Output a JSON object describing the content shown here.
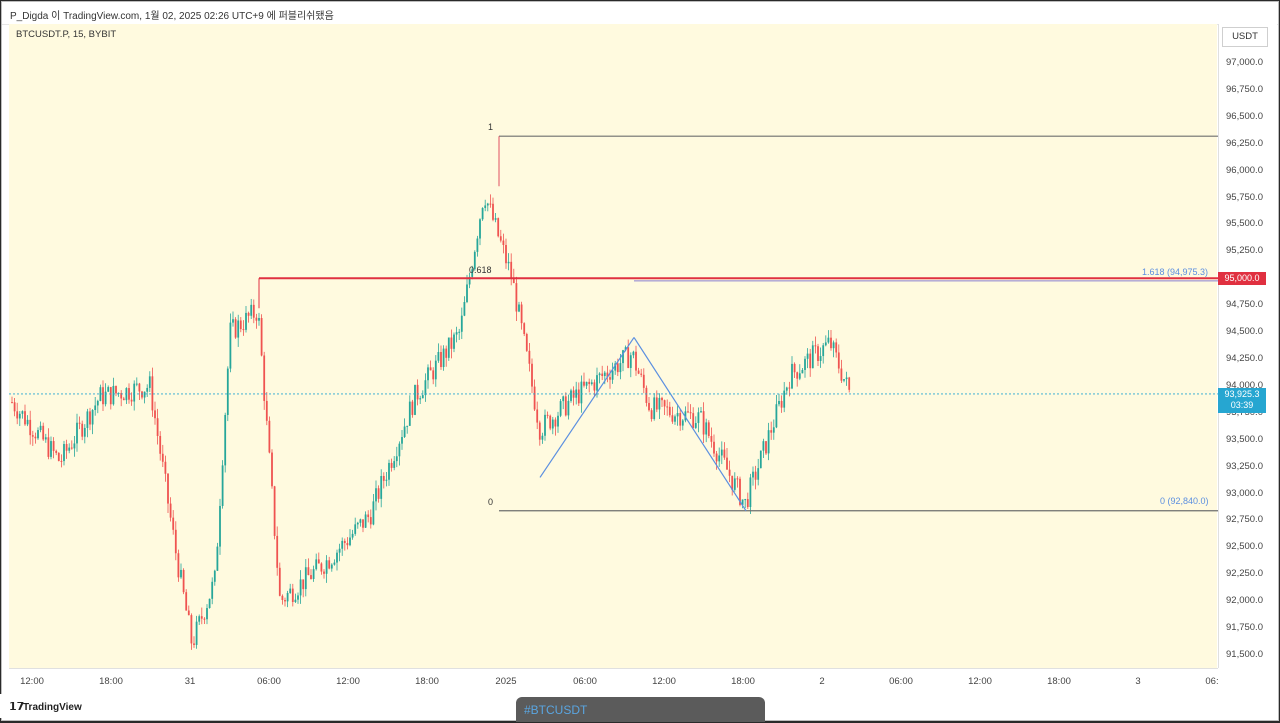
{
  "header": {
    "caption": "P_Digda 이 TradingView.com, 1월 02, 2025 02:26 UTC+9 에 퍼블리쉬됐음"
  },
  "chart_header": {
    "symbol": "BTCUSDT.P, 15, BYBIT"
  },
  "price_axis": {
    "unit": "USDT",
    "ticks": [
      "97,000.0",
      "96,750.0",
      "96,500.0",
      "96,250.0",
      "96,000.0",
      "95,750.0",
      "95,500.0",
      "95,250.0",
      "95,000.0",
      "94,750.0",
      "94,500.0",
      "94,250.0",
      "94,000.0",
      "93,750.0",
      "93,500.0",
      "93,250.0",
      "93,000.0",
      "92,750.0",
      "92,500.0",
      "92,250.0",
      "92,000.0",
      "91,750.0",
      "91,500.0"
    ]
  },
  "time_axis": {
    "ticks": [
      "12:00",
      "18:00",
      "31",
      "06:00",
      "12:00",
      "18:00",
      "2025",
      "06:00",
      "12:00",
      "18:00",
      "2",
      "06:00",
      "12:00",
      "18:00",
      "3",
      "06:"
    ]
  },
  "annotations": {
    "fib_1": "1",
    "fib_0618": "0.618",
    "fib_0": "0",
    "ext_1618": "1.618 (94,975.3)",
    "ext_0": "0 (92,840.0)"
  },
  "price_tags": {
    "resistance": "95,000.0",
    "current_price": "93,925.3",
    "countdown": "03:39"
  },
  "colors": {
    "background": "#fffadf",
    "bull": "#26a69a",
    "bear": "#ef5350",
    "resistance": "#e03040",
    "current": "#26a6d1",
    "pattern": "#5b8fe0"
  },
  "footer": {
    "logo_text": "TradingView",
    "hashtag": "#BTCUSDT"
  },
  "chart_data": {
    "type": "candlestick",
    "symbol": "BTCUSDT.P",
    "interval": "15",
    "exchange": "BYBIT",
    "ylim": [
      91400,
      97200
    ],
    "approx_close_path": [
      {
        "t": "12-31 10:00",
        "p": 93850
      },
      {
        "t": "12-31 14:00",
        "p": 93300
      },
      {
        "t": "12-31 18:00",
        "p": 93900
      },
      {
        "t": "12-31 22:00",
        "p": 94000
      },
      {
        "t": "12-31 23:00",
        "p": 92500
      },
      {
        "t": "01-01 00:30",
        "p": 91600
      },
      {
        "t": "01-01 02:00",
        "p": 92200
      },
      {
        "t": "01-01 04:00",
        "p": 94500
      },
      {
        "t": "01-01 05:30",
        "p": 94700
      },
      {
        "t": "01-01 07:00",
        "p": 92000
      },
      {
        "t": "01-01 12:00",
        "p": 92400
      },
      {
        "t": "01-01 16:00",
        "p": 92800
      },
      {
        "t": "01-01 18:00",
        "p": 93900
      },
      {
        "t": "01-01 21:00",
        "p": 94500
      },
      {
        "t": "01-01 22:30",
        "p": 95800
      },
      {
        "t": "01-02 00:30",
        "p": 95000
      },
      {
        "t": "01-02 02:00",
        "p": 93600
      },
      {
        "t": "01-02 05:00",
        "p": 93900
      },
      {
        "t": "01-02 09:00",
        "p": 94300
      },
      {
        "t": "01-02 12:00",
        "p": 93800
      },
      {
        "t": "01-02 18:00",
        "p": 92900
      },
      {
        "t": "01-02 22:00",
        "p": 94100
      },
      {
        "t": "01-03 00:00",
        "p": 94400
      },
      {
        "t": "01-03 02:00",
        "p": 93925.3
      }
    ],
    "levels": [
      {
        "name": "1",
        "price": 96320
      },
      {
        "name": "0.618",
        "price": 95000
      },
      {
        "name": "1.618 (94,975.3)",
        "price": 94975.3
      },
      {
        "name": "0 (92,840.0)",
        "price": 92840
      }
    ],
    "pattern_points": [
      {
        "price": 93150
      },
      {
        "price": 94450
      },
      {
        "price": 92840
      }
    ],
    "current_price": 93925.3
  }
}
